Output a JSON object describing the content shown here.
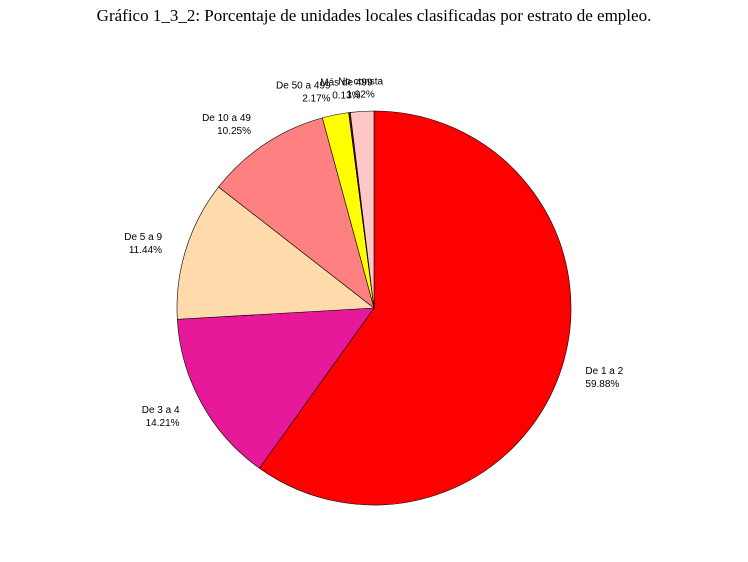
{
  "chart_data": {
    "type": "pie",
    "title": "Gráfico 1_3_2: Porcentaje de unidades locales clasificadas por estrato de empleo.",
    "slices": [
      {
        "label": "De 1 a 2",
        "value": 59.88,
        "value_label": "59.88%",
        "color": "#ff0000"
      },
      {
        "label": "De 3 a 4",
        "value": 14.21,
        "value_label": "14.21%",
        "color": "#e8189a"
      },
      {
        "label": "De 5 a 9",
        "value": 11.44,
        "value_label": "11.44%",
        "color": "#ffdaab"
      },
      {
        "label": "De 10 a 49",
        "value": 10.25,
        "value_label": "10.25%",
        "color": "#ff8080"
      },
      {
        "label": "De 50 a 499",
        "value": 2.17,
        "value_label": "2.17%",
        "color": "#ffff00"
      },
      {
        "label": "Más de 499",
        "value": 0.13,
        "value_label": "0.13%",
        "color": "#6b0000"
      },
      {
        "label": "No consta",
        "value": 1.92,
        "value_label": "1.92%",
        "color": "#ffc8c8"
      }
    ],
    "direction": "clockwise",
    "start": "top"
  }
}
